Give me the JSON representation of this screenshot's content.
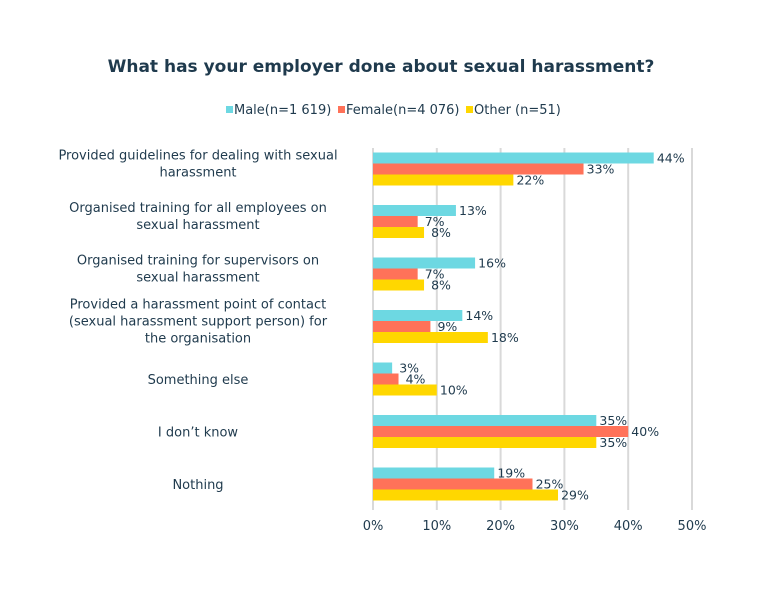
{
  "chart_data": {
    "type": "bar",
    "orientation": "horizontal",
    "title": "What has your employer done about sexual harassment?",
    "categories": [
      [
        "Provided guidelines for dealing with sexual",
        "harassment"
      ],
      [
        "Organised training for all employees on",
        "sexual harassment"
      ],
      [
        "Organised training for supervisors on",
        "sexual harassment"
      ],
      [
        "Provided a harassment point of contact",
        "(sexual harassment support person) for",
        "the organisation"
      ],
      [
        "Something else"
      ],
      [
        "I don’t know"
      ],
      [
        "Nothing"
      ]
    ],
    "series": [
      {
        "name": "Male(n=1 619)",
        "color": "#6dd8e2",
        "values": [
          44,
          13,
          16,
          14,
          3,
          35,
          19
        ]
      },
      {
        "name": "Female(n=4 076)",
        "color": "#ff7259",
        "values": [
          33,
          7,
          7,
          9,
          4,
          40,
          25
        ]
      },
      {
        "name": "Other (n=51)",
        "color": "#ffd700",
        "values": [
          22,
          8,
          8,
          18,
          10,
          35,
          29
        ]
      }
    ],
    "xlim": [
      0,
      50
    ],
    "xticks": [
      "0%",
      "10%",
      "20%",
      "30%",
      "40%",
      "50%"
    ],
    "xtick_values": [
      0,
      10,
      20,
      30,
      40,
      50
    ],
    "value_suffix": "%",
    "grid": "vertical",
    "legend_position": "top"
  }
}
